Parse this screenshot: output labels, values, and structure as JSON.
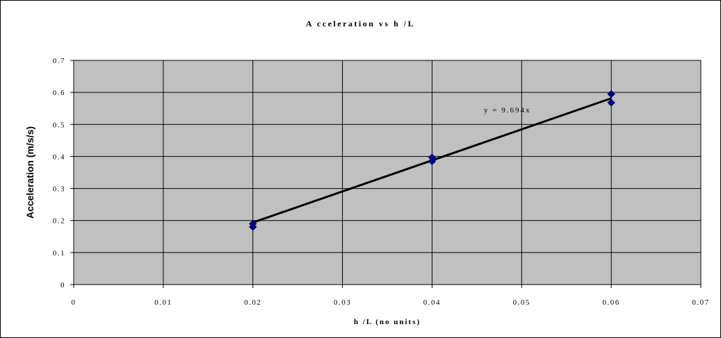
{
  "chart_data": {
    "type": "scatter",
    "title": "A cceleration vs h /L",
    "xlabel": "h /L (no units)",
    "ylabel": "Acceleration (m/s/s)",
    "xlim": [
      0,
      0.07
    ],
    "ylim": [
      0,
      0.7
    ],
    "x_ticks": [
      "0",
      "0.01",
      "0.02",
      "0.03",
      "0.04",
      "0.05",
      "0.06",
      "0.07"
    ],
    "y_ticks": [
      "0",
      "0.1",
      "0.2",
      "0.3",
      "0.4",
      "0.5",
      "0.6",
      "0.7"
    ],
    "grid": true,
    "plot_background": "#c0c0c0",
    "marker_color": "#000080",
    "series": [
      {
        "points": [
          {
            "x": 0.02,
            "y": 0.18
          },
          {
            "x": 0.02,
            "y": 0.19
          },
          {
            "x": 0.04,
            "y": 0.385
          },
          {
            "x": 0.04,
            "y": 0.397
          },
          {
            "x": 0.06,
            "y": 0.568
          },
          {
            "x": 0.06,
            "y": 0.595
          }
        ]
      }
    ],
    "trendline": {
      "slope": 9.694,
      "x_range": [
        0.02,
        0.06
      ],
      "color": "#000000",
      "label": "y = 9.694x"
    }
  }
}
